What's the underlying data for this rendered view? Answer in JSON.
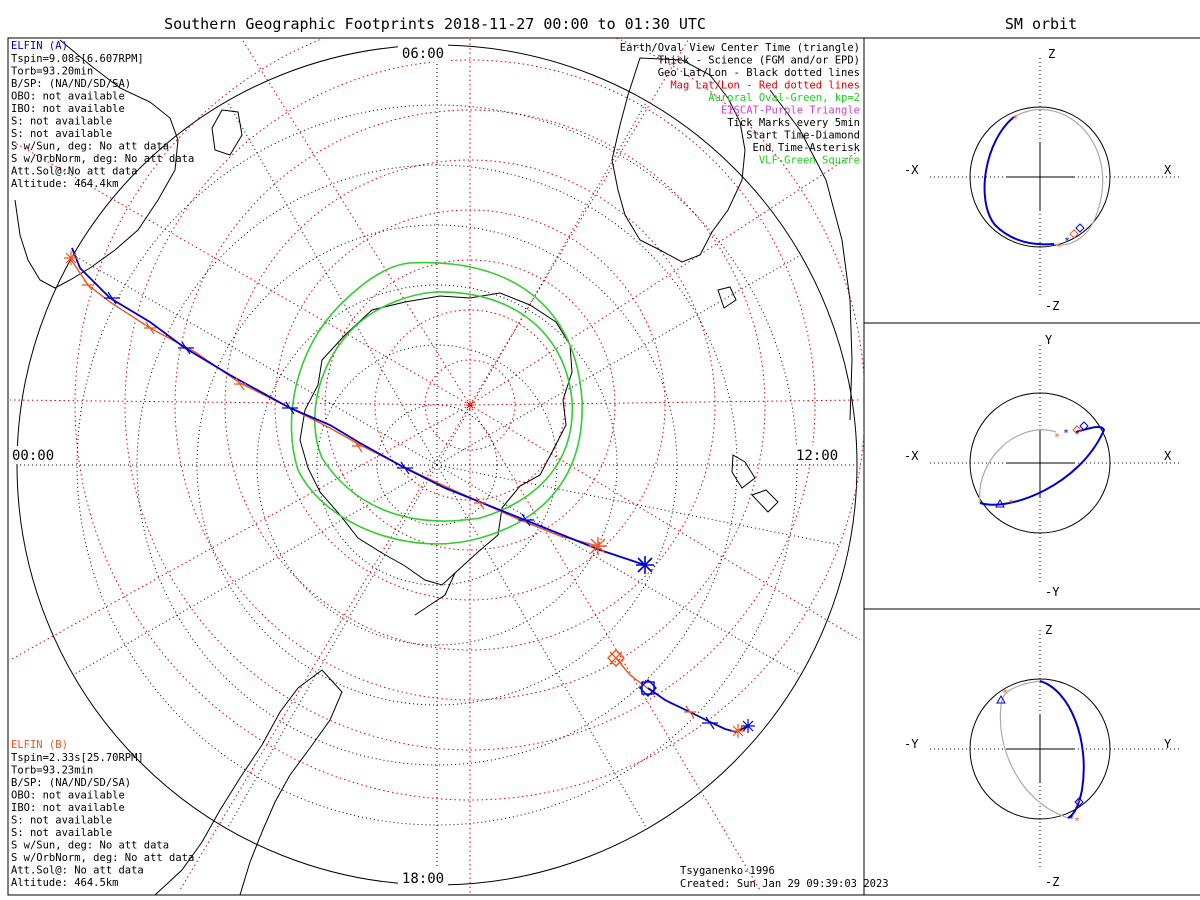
{
  "title": "Southern Geographic Footprints 2018-11-27 00:00 to 01:30 UTC",
  "orbit_title": "SM orbit",
  "map_labels": {
    "top": "06:00",
    "left": "00:00",
    "right": "12:00",
    "bottom": "18:00"
  },
  "legend": [
    {
      "text": "Earth/Oval View Center Time (triangle)",
      "color": "#000000"
    },
    {
      "text": "Thick - Science (FGM and/or EPD)",
      "color": "#000000"
    },
    {
      "text": "Geo Lat/Lon - Black dotted lines",
      "color": "#000000"
    },
    {
      "text": "Mag Lat/Lon - Red dotted lines",
      "color": "#e00000"
    },
    {
      "text": "Auroral Oval-Green, kp=2",
      "color": "#22cc22"
    },
    {
      "text": "EISCAT-Purple Triangle",
      "color": "#cc44cc"
    },
    {
      "text": "Tick Marks every 5min",
      "color": "#000000"
    },
    {
      "text": "Start Time-Diamond",
      "color": "#000000"
    },
    {
      "text": "End Time-Asterisk",
      "color": "#000000"
    },
    {
      "text": "VLF-Green Square",
      "color": "#22cc22"
    }
  ],
  "sat_a": {
    "name": "ELFIN (A)",
    "color": "#0000cc",
    "lines": [
      "Tspin=9.08s[6.607RPM]",
      "Torb=93.20min",
      "B/SP: (NA/ND/SD/SA)",
      "OBO: not available",
      "IBO: not available",
      "S: not available",
      "S: not available",
      "S w/Sun, deg: No att data",
      "S w/OrbNorm, deg: No att data",
      "Att.Sol@:No att data",
      "Altitude: 464.4km"
    ]
  },
  "sat_b": {
    "name": "ELFIN (B)",
    "color": "#ee5522",
    "lines": [
      "Tspin=2.33s[25.70RPM]",
      "Torb=93.23min",
      "B/SP: (NA/ND/SD/SA)",
      "OBO: not available",
      "IBO: not available",
      "S: not available",
      "S: not available",
      "S w/Sun, deg: No att data",
      "S w/OrbNorm, deg: No att data",
      "Att.Sol@: No att data",
      "Altitude: 464.5km"
    ]
  },
  "credits": [
    "Tsyganenko-1996",
    "Created: Sun Jan 29 09:39:03 2023"
  ],
  "orbit_panels": [
    {
      "top": "Z",
      "bottom": "-Z",
      "left": "-X",
      "right": "X"
    },
    {
      "top": "Y",
      "bottom": "-Y",
      "left": "-X",
      "right": "X"
    },
    {
      "top": "Z",
      "bottom": "-Z",
      "left": "-Y",
      "right": "Y"
    }
  ],
  "colors": {
    "sat_a": "#0000cc",
    "sat_b": "#ee5522",
    "oval": "#33cc33",
    "mag_grid": "#e00000",
    "geo_grid": "#000000",
    "orbit_grey": "#aaaaaa"
  }
}
